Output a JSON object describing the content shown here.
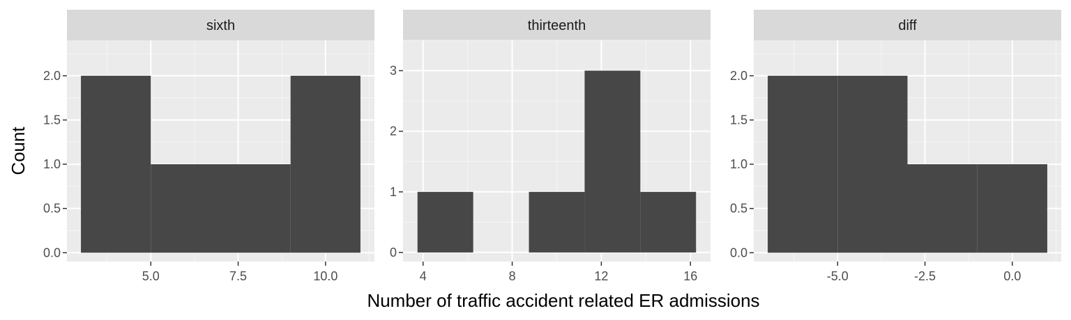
{
  "chart_data": {
    "type": "histogram",
    "xlabel": "Number of traffic accident related ER admissions",
    "ylabel": "Count",
    "colors": {
      "panel_bg": "#EBEBEB",
      "grid_major": "#FFFFFF",
      "grid_minor": "#F5F5F5",
      "strip_bg": "#D9D9D9",
      "bar_fill": "#474747",
      "tick": "#333333"
    },
    "panels": [
      {
        "title": "sixth",
        "xlim": [
          2.6,
          11.4
        ],
        "ylim": [
          -0.1,
          2.4
        ],
        "xticks": [
          5.0,
          7.5,
          10.0
        ],
        "xtick_labels": [
          "5.0",
          "7.5",
          "10.0"
        ],
        "yticks": [
          0.0,
          0.5,
          1.0,
          1.5,
          2.0
        ],
        "ytick_labels": [
          "0.0",
          "0.5",
          "1.0",
          "1.5",
          "2.0"
        ],
        "bins": [
          {
            "x0": 3.0,
            "x1": 5.0,
            "count": 2
          },
          {
            "x0": 5.0,
            "x1": 7.0,
            "count": 1
          },
          {
            "x0": 7.0,
            "x1": 9.0,
            "count": 1
          },
          {
            "x0": 9.0,
            "x1": 11.0,
            "count": 2
          }
        ]
      },
      {
        "title": "thirteenth",
        "xlim": [
          3.1,
          16.9
        ],
        "ylim": [
          -0.15,
          3.5
        ],
        "xticks": [
          4,
          8,
          12,
          16
        ],
        "xtick_labels": [
          "4",
          "8",
          "12",
          "16"
        ],
        "yticks": [
          0,
          1,
          2,
          3
        ],
        "ytick_labels": [
          "0",
          "1",
          "2",
          "3"
        ],
        "bins": [
          {
            "x0": 3.75,
            "x1": 6.25,
            "count": 1
          },
          {
            "x0": 6.25,
            "x1": 8.75,
            "count": 0
          },
          {
            "x0": 8.75,
            "x1": 11.25,
            "count": 1
          },
          {
            "x0": 11.25,
            "x1": 13.75,
            "count": 3
          },
          {
            "x0": 13.75,
            "x1": 16.25,
            "count": 1
          }
        ]
      },
      {
        "title": "diff",
        "xlim": [
          -7.4,
          1.4
        ],
        "ylim": [
          -0.1,
          2.4
        ],
        "xticks": [
          -5.0,
          -2.5,
          0.0
        ],
        "xtick_labels": [
          "-5.0",
          "-2.5",
          "0.0"
        ],
        "yticks": [
          0.0,
          0.5,
          1.0,
          1.5,
          2.0
        ],
        "ytick_labels": [
          "0.0",
          "0.5",
          "1.0",
          "1.5",
          "2.0"
        ],
        "bins": [
          {
            "x0": -7.0,
            "x1": -5.0,
            "count": 2
          },
          {
            "x0": -5.0,
            "x1": -3.0,
            "count": 2
          },
          {
            "x0": -3.0,
            "x1": -1.0,
            "count": 1
          },
          {
            "x0": -1.0,
            "x1": 1.0,
            "count": 1
          }
        ]
      }
    ]
  }
}
